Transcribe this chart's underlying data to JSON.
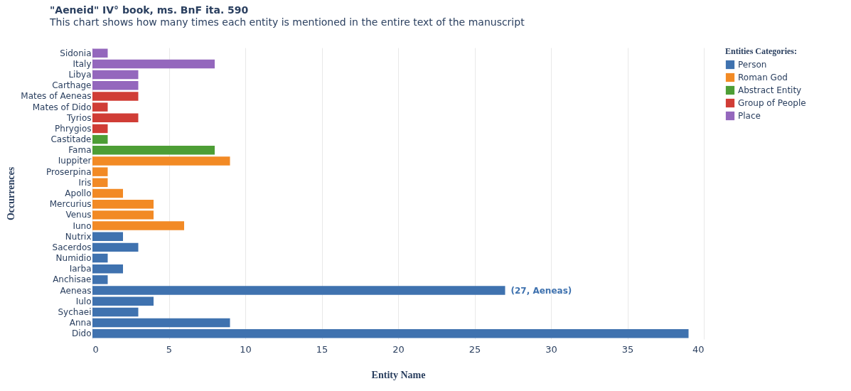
{
  "chart_data": {
    "type": "bar",
    "orientation": "horizontal",
    "title": "\"Aeneid\" IV° book, ms. BnF ita. 590",
    "subtitle": "This chart shows how many times each entity is mentioned in the entire text of the manuscript",
    "xlabel": "Entity Name",
    "ylabel": "Occurrences",
    "legend_title": "Entities Categories:",
    "legend": "right",
    "grid": "x",
    "categories": [
      "Sidonia",
      "Italy",
      "Libya",
      "Carthage",
      "Mates of Aeneas",
      "Mates of Dido",
      "Tyrios",
      "Phrygios",
      "Castitade",
      "Fama",
      "Iuppiter",
      "Proserpina",
      "Iris",
      "Apollo",
      "Mercurius",
      "Venus",
      "Iuno",
      "Nutrix",
      "Sacerdos",
      "Numidio",
      "Iarba",
      "Anchisae",
      "Aeneas",
      "Iulo",
      "Sychaei",
      "Anna",
      "Dido"
    ],
    "xlim": [
      0,
      40
    ],
    "xticks": [
      0,
      5,
      10,
      15,
      20,
      25,
      30,
      35,
      40
    ],
    "series": [
      {
        "name": "Person",
        "color": "#3f72af",
        "values": [
          null,
          null,
          null,
          null,
          null,
          null,
          null,
          null,
          null,
          null,
          null,
          null,
          null,
          null,
          null,
          null,
          null,
          2,
          3,
          1,
          2,
          1,
          27,
          4,
          3,
          9,
          39
        ]
      },
      {
        "name": "Roman God",
        "color": "#f28a25",
        "values": [
          null,
          null,
          null,
          null,
          null,
          null,
          null,
          null,
          null,
          null,
          9,
          1,
          1,
          2,
          4,
          4,
          6,
          null,
          null,
          null,
          null,
          null,
          null,
          null,
          null,
          null,
          null
        ]
      },
      {
        "name": "Abstract Entity",
        "color": "#4d9e35",
        "values": [
          null,
          null,
          null,
          null,
          null,
          null,
          null,
          null,
          1,
          8,
          null,
          null,
          null,
          null,
          null,
          null,
          null,
          null,
          null,
          null,
          null,
          null,
          null,
          null,
          null,
          null,
          null
        ]
      },
      {
        "name": "Group of People",
        "color": "#d03d36",
        "values": [
          null,
          null,
          null,
          null,
          3,
          1,
          3,
          1,
          null,
          null,
          null,
          null,
          null,
          null,
          null,
          null,
          null,
          null,
          null,
          null,
          null,
          null,
          null,
          null,
          null,
          null,
          null
        ]
      },
      {
        "name": "Place",
        "color": "#9467bd",
        "values": [
          1,
          8,
          3,
          3,
          null,
          null,
          null,
          null,
          null,
          null,
          null,
          null,
          null,
          null,
          null,
          null,
          null,
          null,
          null,
          null,
          null,
          null,
          null,
          null,
          null,
          null,
          null
        ]
      }
    ],
    "annotations": [
      {
        "text": "(27, Aeneas)",
        "x": 27,
        "y": "Aeneas"
      }
    ]
  }
}
